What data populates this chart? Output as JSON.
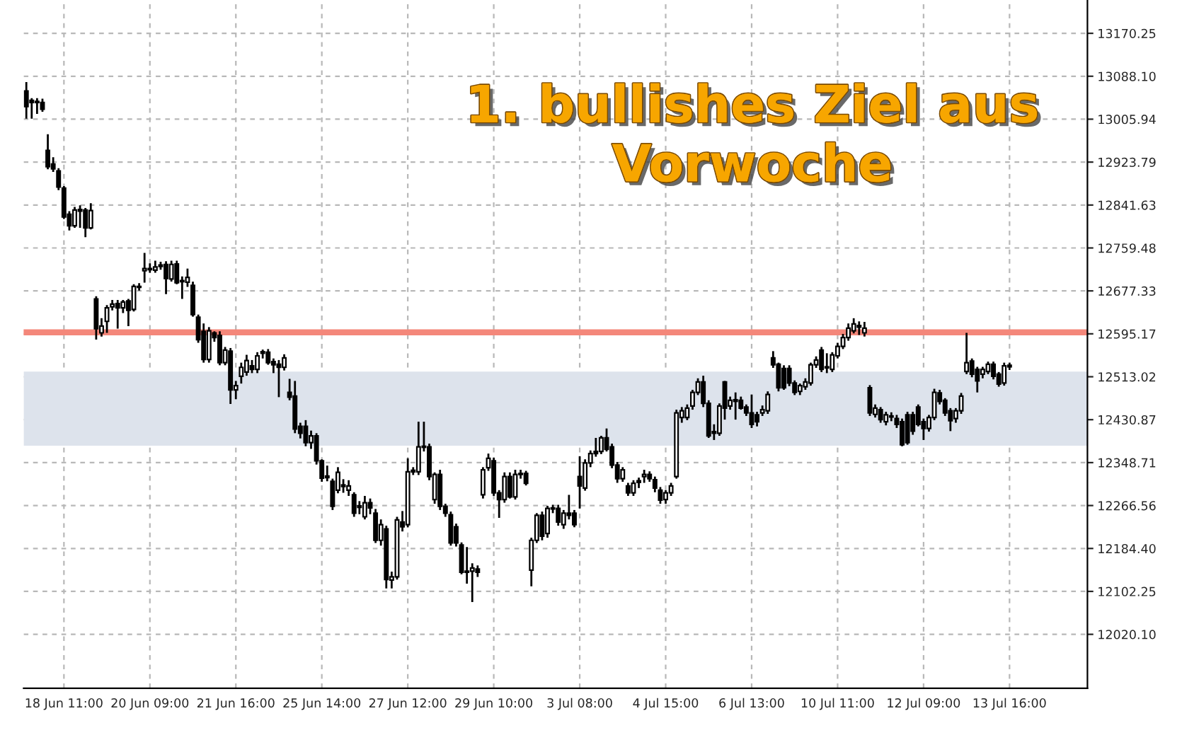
{
  "chart_data": {
    "type": "candlestick",
    "categories": [
      null,
      null,
      null,
      null,
      null,
      null,
      null,
      "18 Jun 11:00",
      null,
      null,
      null,
      null,
      null,
      null,
      null,
      null,
      null,
      null,
      null,
      null,
      null,
      null,
      null,
      "20 Jun 09:00",
      null,
      null,
      null,
      null,
      null,
      null,
      null,
      null,
      null,
      null,
      null,
      null,
      null,
      null,
      null,
      "21 Jun 16:00",
      null,
      null,
      null,
      null,
      null,
      null,
      null,
      null,
      null,
      null,
      null,
      null,
      null,
      null,
      null,
      "25 Jun 14:00",
      null,
      null,
      null,
      null,
      null,
      null,
      null,
      null,
      null,
      null,
      null,
      null,
      null,
      null,
      null,
      "27 Jun 12:00",
      null,
      null,
      null,
      null,
      null,
      null,
      null,
      null,
      null,
      null,
      null,
      null,
      null,
      null,
      null,
      "29 Jun 10:00",
      null,
      null,
      null,
      null,
      null,
      null,
      null,
      null,
      null,
      null,
      null,
      null,
      null,
      null,
      null,
      "3 Jul 08:00",
      null,
      null,
      null,
      null,
      null,
      null,
      null,
      null,
      null,
      null,
      null,
      null,
      null,
      null,
      null,
      "4 Jul 15:00",
      null,
      null,
      null,
      null,
      null,
      null,
      null,
      null,
      null,
      null,
      null,
      null,
      null,
      null,
      null,
      "6 Jul 13:00",
      null,
      null,
      null,
      null,
      null,
      null,
      null,
      null,
      null,
      null,
      null,
      null,
      null,
      null,
      null,
      "10 Jul 11:00",
      null,
      null,
      null,
      null,
      null,
      null,
      null,
      null,
      null,
      null,
      null,
      null,
      null,
      null,
      null,
      "12 Jul 09:00",
      null,
      null,
      null,
      null,
      null,
      null,
      null,
      null,
      null,
      null,
      null,
      null,
      null,
      null,
      null,
      "13 Jul 16:00",
      null,
      null,
      null,
      null,
      null,
      null,
      null,
      null,
      null,
      null,
      null,
      null,
      null,
      null
    ],
    "ohlc": [
      [
        13060,
        13077,
        13007,
        13030
      ],
      [
        13042,
        13046,
        13007,
        13038
      ],
      [
        13038,
        13046,
        13016,
        13040
      ],
      [
        13038,
        13045,
        13020,
        13025
      ],
      [
        12946,
        12977,
        12910,
        12915
      ],
      [
        12920,
        12933,
        12905,
        12911
      ],
      [
        12907,
        12912,
        12870,
        12876
      ],
      [
        12874,
        12878,
        12815,
        12819
      ],
      [
        12824,
        12830,
        12793,
        12802
      ],
      [
        12802,
        12838,
        12798,
        12832
      ],
      [
        12830,
        12841,
        12798,
        12833
      ],
      [
        12832,
        12836,
        12780,
        12798
      ],
      [
        12798,
        12845,
        12795,
        12831
      ],
      [
        12662,
        12667,
        12584,
        12605
      ],
      [
        12597,
        12625,
        12590,
        12610
      ],
      [
        12619,
        12650,
        12597,
        12645
      ],
      [
        12647,
        12660,
        12640,
        12652
      ],
      [
        12653,
        12660,
        12605,
        12645
      ],
      [
        12645,
        12660,
        12635,
        12656
      ],
      [
        12658,
        12662,
        12610,
        12640
      ],
      [
        12642,
        12690,
        12638,
        12686
      ],
      [
        12684,
        12692,
        12678,
        12686
      ],
      [
        12716,
        12750,
        12693,
        12720
      ],
      [
        12720,
        12730,
        12712,
        12718
      ],
      [
        12717,
        12735,
        12712,
        12723
      ],
      [
        12724,
        12733,
        12718,
        12727
      ],
      [
        12728,
        12734,
        12671,
        12701
      ],
      [
        12700,
        12735,
        12695,
        12728
      ],
      [
        12729,
        12735,
        12690,
        12693
      ],
      [
        12697,
        12705,
        12662,
        12695
      ],
      [
        12694,
        12720,
        12685,
        12703
      ],
      [
        12688,
        12695,
        12628,
        12632
      ],
      [
        12627,
        12632,
        12578,
        12584
      ],
      [
        12600,
        12615,
        12540,
        12546
      ],
      [
        12546,
        12608,
        12540,
        12601
      ],
      [
        12597,
        12600,
        12580,
        12588
      ],
      [
        12592,
        12600,
        12535,
        12540
      ],
      [
        12540,
        12570,
        12535,
        12564
      ],
      [
        12562,
        12568,
        12461,
        12488
      ],
      [
        12488,
        12505,
        12470,
        12496
      ],
      [
        12514,
        12540,
        12500,
        12531
      ],
      [
        12522,
        12555,
        12515,
        12544
      ],
      [
        12534,
        12545,
        12520,
        12527
      ],
      [
        12527,
        12560,
        12520,
        12553
      ],
      [
        12558,
        12565,
        12548,
        12561
      ],
      [
        12560,
        12566,
        12536,
        12540
      ],
      [
        12542,
        12548,
        12520,
        12536
      ],
      [
        12537,
        12545,
        12474,
        12531
      ],
      [
        12531,
        12556,
        12525,
        12549
      ],
      [
        12483,
        12509,
        12468,
        12474
      ],
      [
        12476,
        12505,
        12405,
        12413
      ],
      [
        12418,
        12425,
        12395,
        12405
      ],
      [
        12418,
        12430,
        12380,
        12387
      ],
      [
        12387,
        12410,
        12375,
        12400
      ],
      [
        12400,
        12405,
        12345,
        12352
      ],
      [
        12352,
        12355,
        12312,
        12319
      ],
      [
        12320,
        12343,
        12313,
        12323
      ],
      [
        12313,
        12318,
        12258,
        12265
      ],
      [
        12296,
        12340,
        12290,
        12330
      ],
      [
        12306,
        12317,
        12291,
        12303
      ],
      [
        12296,
        12315,
        12285,
        12304
      ],
      [
        12287,
        12292,
        12245,
        12252
      ],
      [
        12263,
        12275,
        12250,
        12266
      ],
      [
        12245,
        12285,
        12240,
        12272
      ],
      [
        12272,
        12280,
        12250,
        12262
      ],
      [
        12252,
        12260,
        12195,
        12200
      ],
      [
        12200,
        12240,
        12190,
        12230
      ],
      [
        12222,
        12228,
        12108,
        12125
      ],
      [
        12124,
        12140,
        12108,
        12130
      ],
      [
        12130,
        12245,
        12125,
        12239
      ],
      [
        12235,
        12256,
        12217,
        12226
      ],
      [
        12230,
        12357,
        12225,
        12331
      ],
      [
        12331,
        12340,
        12325,
        12334
      ],
      [
        12331,
        12427,
        12325,
        12379
      ],
      [
        12378,
        12427,
        12370,
        12380
      ],
      [
        12379,
        12385,
        12315,
        12322
      ],
      [
        12278,
        12330,
        12270,
        12326
      ],
      [
        12326,
        12335,
        12258,
        12265
      ],
      [
        12265,
        12270,
        12245,
        12252
      ],
      [
        12249,
        12255,
        12190,
        12195
      ],
      [
        12226,
        12232,
        12188,
        12195
      ],
      [
        12191,
        12196,
        12135,
        12139
      ],
      [
        12141,
        12187,
        12117,
        12139
      ],
      [
        12141,
        12156,
        12082,
        12147
      ],
      [
        12145,
        12152,
        12130,
        12139
      ],
      [
        12287,
        12340,
        12280,
        12335
      ],
      [
        12339,
        12366,
        12333,
        12357
      ],
      [
        12352,
        12358,
        12285,
        12291
      ],
      [
        12291,
        12296,
        12243,
        12278
      ],
      [
        12278,
        12330,
        12272,
        12322
      ],
      [
        12322,
        12330,
        12280,
        12283
      ],
      [
        12283,
        12335,
        12278,
        12326
      ],
      [
        12328,
        12335,
        12318,
        12326
      ],
      [
        12328,
        12333,
        12305,
        12309
      ],
      [
        12143,
        12205,
        12112,
        12200
      ],
      [
        12200,
        12252,
        12195,
        12248
      ],
      [
        12248,
        12255,
        12200,
        12208
      ],
      [
        12213,
        12266,
        12205,
        12261
      ],
      [
        12260,
        12268,
        12252,
        12262
      ],
      [
        12261,
        12268,
        12228,
        12235
      ],
      [
        12230,
        12258,
        12222,
        12252
      ],
      [
        12252,
        12287,
        12240,
        12248
      ],
      [
        12252,
        12258,
        12225,
        12230
      ],
      [
        12322,
        12361,
        12261,
        12304
      ],
      [
        12300,
        12355,
        12295,
        12348
      ],
      [
        12348,
        12372,
        12340,
        12366
      ],
      [
        12370,
        12396,
        12360,
        12366
      ],
      [
        12370,
        12400,
        12365,
        12396
      ],
      [
        12396,
        12414,
        12370,
        12374
      ],
      [
        12379,
        12385,
        12338,
        12344
      ],
      [
        12344,
        12350,
        12310,
        12318
      ],
      [
        12318,
        12340,
        12312,
        12335
      ],
      [
        12304,
        12310,
        12285,
        12291
      ],
      [
        12291,
        12315,
        12285,
        12309
      ],
      [
        12311,
        12320,
        12300,
        12314
      ],
      [
        12322,
        12335,
        12310,
        12326
      ],
      [
        12326,
        12332,
        12312,
        12318
      ],
      [
        12316,
        12322,
        12292,
        12300
      ],
      [
        12296,
        12302,
        12270,
        12277
      ],
      [
        12278,
        12296,
        12270,
        12291
      ],
      [
        12291,
        12310,
        12285,
        12304
      ],
      [
        12322,
        12450,
        12318,
        12444
      ],
      [
        12435,
        12455,
        12425,
        12448
      ],
      [
        12435,
        12460,
        12430,
        12453
      ],
      [
        12457,
        12488,
        12450,
        12483
      ],
      [
        12483,
        12510,
        12478,
        12503
      ],
      [
        12503,
        12515,
        12455,
        12462
      ],
      [
        12462,
        12468,
        12396,
        12400
      ],
      [
        12405,
        12422,
        12392,
        12408
      ],
      [
        12405,
        12462,
        12400,
        12457
      ],
      [
        12503,
        12505,
        12431,
        12453
      ],
      [
        12457,
        12475,
        12450,
        12468
      ],
      [
        12466,
        12483,
        12431,
        12469
      ],
      [
        12468,
        12475,
        12450,
        12453
      ],
      [
        12455,
        12460,
        12438,
        12444
      ],
      [
        12444,
        12479,
        12415,
        12422
      ],
      [
        12440,
        12446,
        12418,
        12427
      ],
      [
        12444,
        12458,
        12438,
        12450
      ],
      [
        12448,
        12485,
        12442,
        12479
      ],
      [
        12549,
        12562,
        12530,
        12536
      ],
      [
        12537,
        12540,
        12485,
        12492
      ],
      [
        12529,
        12535,
        12488,
        12492
      ],
      [
        12529,
        12535,
        12495,
        12501
      ],
      [
        12501,
        12506,
        12478,
        12483
      ],
      [
        12485,
        12500,
        12478,
        12496
      ],
      [
        12494,
        12510,
        12488,
        12503
      ],
      [
        12501,
        12540,
        12496,
        12536
      ],
      [
        12536,
        12552,
        12530,
        12545
      ],
      [
        12564,
        12570,
        12522,
        12527
      ],
      [
        12530,
        12558,
        12520,
        12532
      ],
      [
        12527,
        12560,
        12522,
        12555
      ],
      [
        12553,
        12578,
        12548,
        12571
      ],
      [
        12571,
        12595,
        12566,
        12588
      ],
      [
        12588,
        12615,
        12582,
        12606
      ],
      [
        12601,
        12625,
        12596,
        12614
      ],
      [
        12608,
        12619,
        12593,
        12611
      ],
      [
        12597,
        12618,
        12590,
        12606
      ],
      [
        12492,
        12497,
        12438,
        12444
      ],
      [
        12441,
        12460,
        12435,
        12453
      ],
      [
        12450,
        12455,
        12425,
        12431
      ],
      [
        12427,
        12446,
        12420,
        12440
      ],
      [
        12436,
        12445,
        12428,
        12438
      ],
      [
        12433,
        12440,
        12415,
        12422
      ],
      [
        12427,
        12433,
        12380,
        12383
      ],
      [
        12440,
        12446,
        12383,
        12387
      ],
      [
        12440,
        12446,
        12402,
        12409
      ],
      [
        12455,
        12460,
        12418,
        12422
      ],
      [
        12427,
        12433,
        12392,
        12414
      ],
      [
        12414,
        12440,
        12408,
        12435
      ],
      [
        12435,
        12490,
        12430,
        12483
      ],
      [
        12482,
        12488,
        12460,
        12466
      ],
      [
        12468,
        12472,
        12438,
        12444
      ],
      [
        12448,
        12453,
        12409,
        12429
      ],
      [
        12433,
        12453,
        12425,
        12448
      ],
      [
        12448,
        12482,
        12442,
        12476
      ],
      [
        12523,
        12597,
        12518,
        12540
      ],
      [
        12543,
        12548,
        12512,
        12518
      ],
      [
        12527,
        12532,
        12483,
        12505
      ],
      [
        12518,
        12532,
        12510,
        12527
      ],
      [
        12523,
        12542,
        12518,
        12537
      ],
      [
        12537,
        12542,
        12508,
        12514
      ],
      [
        12518,
        12522,
        12494,
        12499
      ],
      [
        12501,
        12540,
        12496,
        12534
      ],
      [
        12532,
        12540,
        12526,
        12535
      ],
      null,
      null,
      null,
      null,
      null,
      null,
      null,
      null,
      null,
      null,
      null,
      null,
      null,
      null
    ],
    "ylim": [
      11917,
      13234
    ],
    "yticks": [
      13170.25,
      {
        "value": 13088.1,
        "label": "13088.10"
      },
      13005.94,
      12923.79,
      12841.63,
      12759.48,
      12677.33,
      12595.17,
      12513.02,
      12430.87,
      12348.71,
      12266.56,
      {
        "value": 12184.4,
        "label": "12184.40"
      },
      12102.25,
      {
        "value": 12020.1,
        "label": "12020.10"
      }
    ],
    "ref_lines": [
      {
        "axis": "y",
        "value": 12598,
        "label": null,
        "color": "#f4877a"
      }
    ],
    "bands": [
      {
        "axis": "y",
        "from": 12381,
        "to": 12523,
        "label": null,
        "color": "#dde3ec"
      }
    ],
    "annotations": [
      "1. bullishes Ziel aus\nVorwoche"
    ],
    "grid": true
  }
}
